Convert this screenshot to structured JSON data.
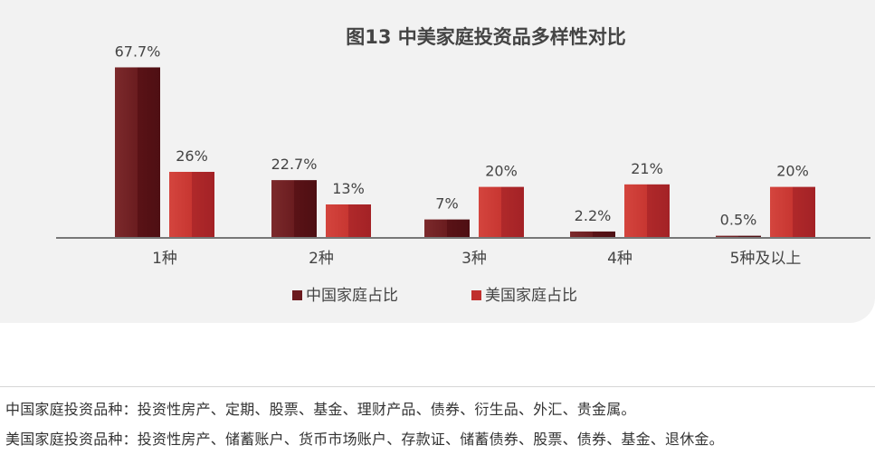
{
  "chart_data": {
    "type": "bar",
    "title": "图13 中美家庭投资品多样性对比",
    "categories": [
      "1种",
      "2种",
      "3种",
      "4种",
      "5种及以上"
    ],
    "series": [
      {
        "name": "中国家庭占比",
        "values": [
          67.7,
          22.7,
          7,
          2.2,
          0.5
        ],
        "labels": [
          "67.7%",
          "22.7%",
          "7%",
          "2.2%",
          "0.5%"
        ],
        "color": "#6b1a1e"
      },
      {
        "name": "美国家庭占比",
        "values": [
          26,
          13,
          20,
          21,
          20
        ],
        "labels": [
          "26%",
          "13%",
          "20%",
          "21%",
          "20%"
        ],
        "color": "#c0302e"
      }
    ],
    "legend_position": "bottom-center",
    "unit": "%",
    "ylim": [
      0,
      70
    ],
    "grid": false
  },
  "notes": {
    "china": "中国家庭投资品种：投资性房产、定期、股票、基金、理财产品、债券、衍生品、外汇、贵金属。",
    "usa": "美国家庭投资品种：投资性房产、储蓄账户、货币市场账户、存款证、储蓄债券、股票、债券、基金、退休金。"
  }
}
